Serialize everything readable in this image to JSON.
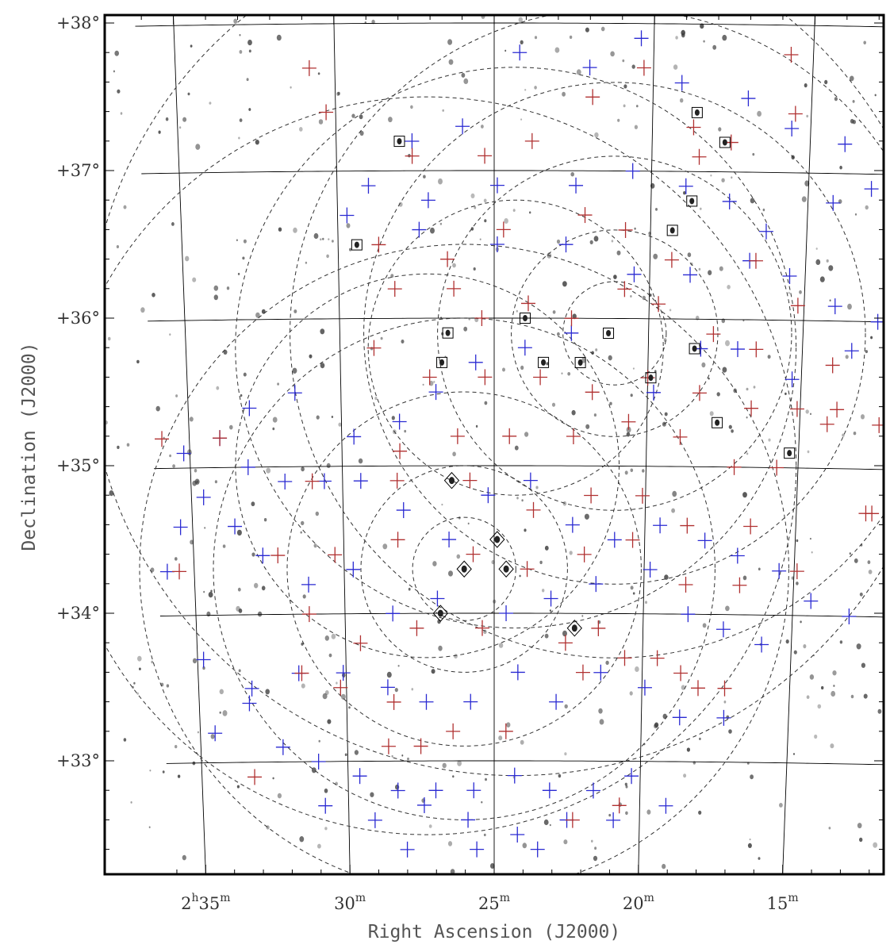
{
  "chart_data": {
    "type": "scatter",
    "title": "",
    "xlabel": "Right Ascension (J2000)",
    "ylabel": "Declination (J2000)",
    "x_unit": "RA minutes (2h)",
    "y_unit": "deg",
    "xlim": [
      36.2,
      11.6
    ],
    "ylim": [
      32.25,
      38.05
    ],
    "xticks": [
      {
        "value": 35,
        "h": "2",
        "m": "35"
      },
      {
        "value": 30,
        "m": "30"
      },
      {
        "value": 25,
        "m": "25"
      },
      {
        "value": 20,
        "m": "20"
      },
      {
        "value": 15,
        "m": "15"
      }
    ],
    "yticks": [
      {
        "value": 38,
        "label": "+38°"
      },
      {
        "value": 37,
        "label": "+37°"
      },
      {
        "value": 36,
        "label": "+36°"
      },
      {
        "value": 35,
        "label": "+35°"
      },
      {
        "value": 34,
        "label": "+34°"
      },
      {
        "value": 33,
        "label": "+33°"
      }
    ],
    "grid": true,
    "background": "greyscale sky image with black point sources",
    "colors": {
      "blue_markers": "#2a2ad2",
      "red_markers": "#b03030",
      "grid_lines": "#000000",
      "dashed_circles": "#333333",
      "sources": "#3a3a3a"
    },
    "field_centers": [
      {
        "ra": 21.1,
        "dec": 35.9,
        "radii_deg": [
          0.35,
          0.7,
          1.2,
          1.7,
          2.2
        ]
      },
      {
        "ra": 26.0,
        "dec": 34.3,
        "radii_deg": [
          0.35,
          0.7,
          1.2,
          1.7,
          2.2
        ]
      },
      {
        "ra": 24.3,
        "dec": 35.8,
        "radii_deg": [
          1.0,
          1.9,
          2.9
        ]
      },
      {
        "ra": 27.2,
        "dec": 35.0,
        "radii_deg": [
          1.3,
          2.5
        ]
      }
    ],
    "series": [
      {
        "marker": "plus",
        "color": "blue",
        "points": [
          [
            27.6,
            37.2
          ],
          [
            26.0,
            37.3
          ],
          [
            24.2,
            37.8
          ],
          [
            22.0,
            37.7
          ],
          [
            20.4,
            37.9
          ],
          [
            19.1,
            37.6
          ],
          [
            17.0,
            37.5
          ],
          [
            15.6,
            37.3
          ],
          [
            13.9,
            37.2
          ],
          [
            13.0,
            36.9
          ],
          [
            14.2,
            36.8
          ],
          [
            16.3,
            36.6
          ],
          [
            17.5,
            36.8
          ],
          [
            18.9,
            36.9
          ],
          [
            20.6,
            37.0
          ],
          [
            22.4,
            36.9
          ],
          [
            24.9,
            36.9
          ],
          [
            27.1,
            36.8
          ],
          [
            29.0,
            36.9
          ],
          [
            29.7,
            36.7
          ],
          [
            27.4,
            36.6
          ],
          [
            24.9,
            36.5
          ],
          [
            22.7,
            36.5
          ],
          [
            20.5,
            36.3
          ],
          [
            18.7,
            36.3
          ],
          [
            16.8,
            36.4
          ],
          [
            15.5,
            36.3
          ],
          [
            14.0,
            36.1
          ],
          [
            12.6,
            36.0
          ],
          [
            13.4,
            35.8
          ],
          [
            15.3,
            35.6
          ],
          [
            17.1,
            35.8
          ],
          [
            18.3,
            35.8
          ],
          [
            19.8,
            35.5
          ],
          [
            22.5,
            35.9
          ],
          [
            24.0,
            35.8
          ],
          [
            25.6,
            35.7
          ],
          [
            26.9,
            35.5
          ],
          [
            28.1,
            35.3
          ],
          [
            29.6,
            35.2
          ],
          [
            31.5,
            35.5
          ],
          [
            33.0,
            35.4
          ],
          [
            34.0,
            35.2
          ],
          [
            35.2,
            35.1
          ],
          [
            34.6,
            34.8
          ],
          [
            33.1,
            35.0
          ],
          [
            31.9,
            34.9
          ],
          [
            30.6,
            34.9
          ],
          [
            29.4,
            34.9
          ],
          [
            28.0,
            34.7
          ],
          [
            26.5,
            34.5
          ],
          [
            25.2,
            34.8
          ],
          [
            23.8,
            34.9
          ],
          [
            22.4,
            34.6
          ],
          [
            21.0,
            34.5
          ],
          [
            19.5,
            34.6
          ],
          [
            18.0,
            34.5
          ],
          [
            16.9,
            34.4
          ],
          [
            15.5,
            34.3
          ],
          [
            14.4,
            34.1
          ],
          [
            13.1,
            34.0
          ],
          [
            33.6,
            34.6
          ],
          [
            35.4,
            34.6
          ],
          [
            35.9,
            34.3
          ],
          [
            32.7,
            34.4
          ],
          [
            31.2,
            34.2
          ],
          [
            29.7,
            34.3
          ],
          [
            28.4,
            34.0
          ],
          [
            26.9,
            34.1
          ],
          [
            24.6,
            34.0
          ],
          [
            23.1,
            34.1
          ],
          [
            21.6,
            34.2
          ],
          [
            19.8,
            34.3
          ],
          [
            18.5,
            34.0
          ],
          [
            17.3,
            33.9
          ],
          [
            16.0,
            33.8
          ],
          [
            34.8,
            33.7
          ],
          [
            33.2,
            33.5
          ],
          [
            31.6,
            33.6
          ],
          [
            30.1,
            33.6
          ],
          [
            28.6,
            33.5
          ],
          [
            27.3,
            33.4
          ],
          [
            25.8,
            33.4
          ],
          [
            24.2,
            33.6
          ],
          [
            22.9,
            33.4
          ],
          [
            21.4,
            33.6
          ],
          [
            19.9,
            33.5
          ],
          [
            18.7,
            33.3
          ],
          [
            17.2,
            33.3
          ],
          [
            34.5,
            33.2
          ],
          [
            33.3,
            33.4
          ],
          [
            32.2,
            33.1
          ],
          [
            31.0,
            33.0
          ],
          [
            29.6,
            32.9
          ],
          [
            28.3,
            32.8
          ],
          [
            27.0,
            32.8
          ],
          [
            25.7,
            32.8
          ],
          [
            24.3,
            32.9
          ],
          [
            23.1,
            32.8
          ],
          [
            21.6,
            32.8
          ],
          [
            20.3,
            32.9
          ],
          [
            19.1,
            32.7
          ],
          [
            30.8,
            32.7
          ],
          [
            29.1,
            32.6
          ],
          [
            27.4,
            32.7
          ],
          [
            25.9,
            32.6
          ],
          [
            24.2,
            32.5
          ],
          [
            22.5,
            32.6
          ],
          [
            20.9,
            32.6
          ],
          [
            28.0,
            32.4
          ],
          [
            25.6,
            32.4
          ],
          [
            23.5,
            32.4
          ]
        ]
      },
      {
        "marker": "plus",
        "color": "red",
        "points": [
          [
            30.8,
            37.7
          ],
          [
            30.3,
            37.4
          ],
          [
            27.6,
            37.1
          ],
          [
            25.3,
            37.1
          ],
          [
            23.8,
            37.2
          ],
          [
            21.9,
            37.5
          ],
          [
            20.3,
            37.7
          ],
          [
            18.7,
            37.3
          ],
          [
            17.5,
            37.2
          ],
          [
            15.7,
            37.8
          ],
          [
            15.5,
            37.4
          ],
          [
            18.5,
            37.1
          ],
          [
            22.1,
            36.7
          ],
          [
            20.8,
            36.6
          ],
          [
            19.3,
            36.4
          ],
          [
            24.7,
            36.6
          ],
          [
            26.5,
            36.4
          ],
          [
            28.7,
            36.5
          ],
          [
            28.2,
            36.2
          ],
          [
            26.3,
            36.2
          ],
          [
            25.4,
            36.0
          ],
          [
            23.9,
            36.1
          ],
          [
            22.5,
            36.0
          ],
          [
            20.8,
            36.2
          ],
          [
            19.7,
            36.1
          ],
          [
            17.9,
            35.9
          ],
          [
            16.5,
            35.8
          ],
          [
            15.2,
            36.1
          ],
          [
            14.0,
            35.7
          ],
          [
            28.9,
            35.8
          ],
          [
            27.1,
            35.6
          ],
          [
            25.3,
            35.6
          ],
          [
            23.5,
            35.6
          ],
          [
            21.8,
            35.5
          ],
          [
            20.0,
            35.6
          ],
          [
            18.3,
            35.5
          ],
          [
            16.6,
            35.4
          ],
          [
            15.1,
            35.4
          ],
          [
            14.1,
            35.3
          ],
          [
            28.1,
            35.1
          ],
          [
            26.2,
            35.2
          ],
          [
            24.5,
            35.2
          ],
          [
            22.4,
            35.2
          ],
          [
            20.6,
            35.3
          ],
          [
            18.9,
            35.2
          ],
          [
            17.1,
            35.0
          ],
          [
            15.7,
            35.0
          ],
          [
            12.4,
            35.3
          ],
          [
            35.9,
            35.2
          ],
          [
            34.0,
            35.2
          ],
          [
            31.0,
            34.9
          ],
          [
            28.2,
            34.9
          ],
          [
            25.8,
            34.9
          ],
          [
            23.7,
            34.7
          ],
          [
            21.8,
            34.8
          ],
          [
            20.1,
            34.8
          ],
          [
            18.6,
            34.6
          ],
          [
            16.5,
            34.6
          ],
          [
            12.7,
            34.7
          ],
          [
            32.2,
            34.4
          ],
          [
            30.3,
            34.4
          ],
          [
            28.2,
            34.5
          ],
          [
            25.7,
            34.4
          ],
          [
            23.9,
            34.3
          ],
          [
            22.0,
            34.4
          ],
          [
            20.4,
            34.5
          ],
          [
            18.6,
            34.2
          ],
          [
            16.8,
            34.2
          ],
          [
            14.9,
            34.3
          ],
          [
            35.5,
            34.3
          ],
          [
            31.2,
            34.0
          ],
          [
            29.5,
            33.8
          ],
          [
            27.6,
            33.9
          ],
          [
            25.4,
            33.9
          ],
          [
            22.6,
            33.8
          ],
          [
            21.5,
            33.9
          ],
          [
            19.5,
            33.7
          ],
          [
            18.1,
            33.5
          ],
          [
            17.2,
            33.5
          ],
          [
            31.5,
            33.6
          ],
          [
            30.2,
            33.5
          ],
          [
            28.4,
            33.4
          ],
          [
            26.4,
            33.2
          ],
          [
            24.6,
            33.2
          ],
          [
            22.0,
            33.6
          ],
          [
            20.6,
            33.7
          ],
          [
            18.7,
            33.6
          ],
          [
            33.2,
            32.9
          ],
          [
            28.6,
            33.1
          ],
          [
            27.5,
            33.1
          ],
          [
            22.3,
            32.6
          ],
          [
            20.7,
            32.7
          ],
          [
            12.2,
            36.0
          ],
          [
            12.5,
            34.7
          ],
          [
            13.8,
            35.4
          ],
          [
            16.6,
            36.4
          ]
        ]
      }
    ],
    "boxed_sources": [
      [
        28.0,
        37.2
      ],
      [
        18.6,
        37.4
      ],
      [
        17.7,
        37.2
      ],
      [
        18.7,
        36.8
      ],
      [
        19.3,
        36.6
      ],
      [
        29.4,
        36.5
      ],
      [
        24.0,
        36.0
      ],
      [
        26.5,
        35.9
      ],
      [
        21.3,
        35.9
      ],
      [
        18.5,
        35.8
      ],
      [
        26.7,
        35.7
      ],
      [
        23.4,
        35.7
      ],
      [
        22.2,
        35.7
      ],
      [
        19.9,
        35.6
      ],
      [
        17.7,
        35.3
      ],
      [
        15.3,
        35.1
      ]
    ],
    "diamond_sources": [
      [
        26.4,
        34.9
      ],
      [
        26.0,
        34.3
      ],
      [
        24.9,
        34.5
      ],
      [
        24.6,
        34.3
      ],
      [
        26.8,
        34.0
      ],
      [
        22.3,
        33.9
      ]
    ]
  }
}
